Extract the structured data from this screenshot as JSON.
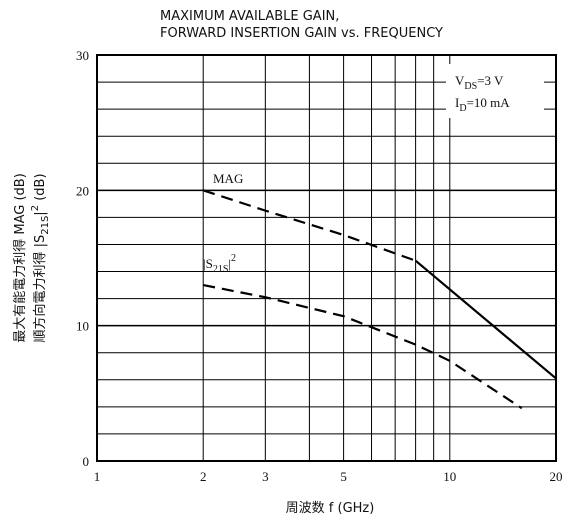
{
  "chart_data": {
    "type": "line",
    "title": [
      "MAXIMUM AVAILABLE GAIN,",
      "FORWARD INSERTION GAIN vs. FREQUENCY"
    ],
    "x_label": "周波数 f (GHz)",
    "y_label_1": "最大有能電力利得 MAG (dB)",
    "y_label_2": [
      "順方向電力利得 |S",
      "21S",
      "|",
      "2",
      " (dB)"
    ],
    "conditions": [
      [
        "V",
        "DS",
        "=3 V"
      ],
      [
        "I",
        "D",
        "=10 mA"
      ]
    ],
    "xlog": true,
    "xlim": [
      1,
      20
    ],
    "xticks": [
      1,
      2,
      3,
      5,
      10,
      20
    ],
    "xgrid": [
      2,
      3,
      4,
      5,
      6,
      7,
      8,
      9,
      10
    ],
    "ylim": [
      0,
      30
    ],
    "yticks": [
      0,
      10,
      20,
      30
    ],
    "ygrid": [
      2,
      4,
      6,
      8,
      10,
      12,
      14,
      16,
      18,
      20,
      22,
      24,
      26,
      28
    ],
    "series": [
      {
        "name": "MAG",
        "color": "#000000",
        "x": [
          2,
          3,
          5,
          8,
          20
        ],
        "values": [
          20,
          18.5,
          16.7,
          14.8,
          6.1
        ],
        "solid_from": 8
      },
      {
        "name": [
          "|S",
          "21S",
          "|",
          "2"
        ],
        "color": "#000000",
        "x": [
          2,
          3,
          5,
          8,
          10,
          16
        ],
        "values": [
          13,
          12.1,
          10.7,
          8.6,
          7.4,
          3.9
        ]
      }
    ]
  }
}
